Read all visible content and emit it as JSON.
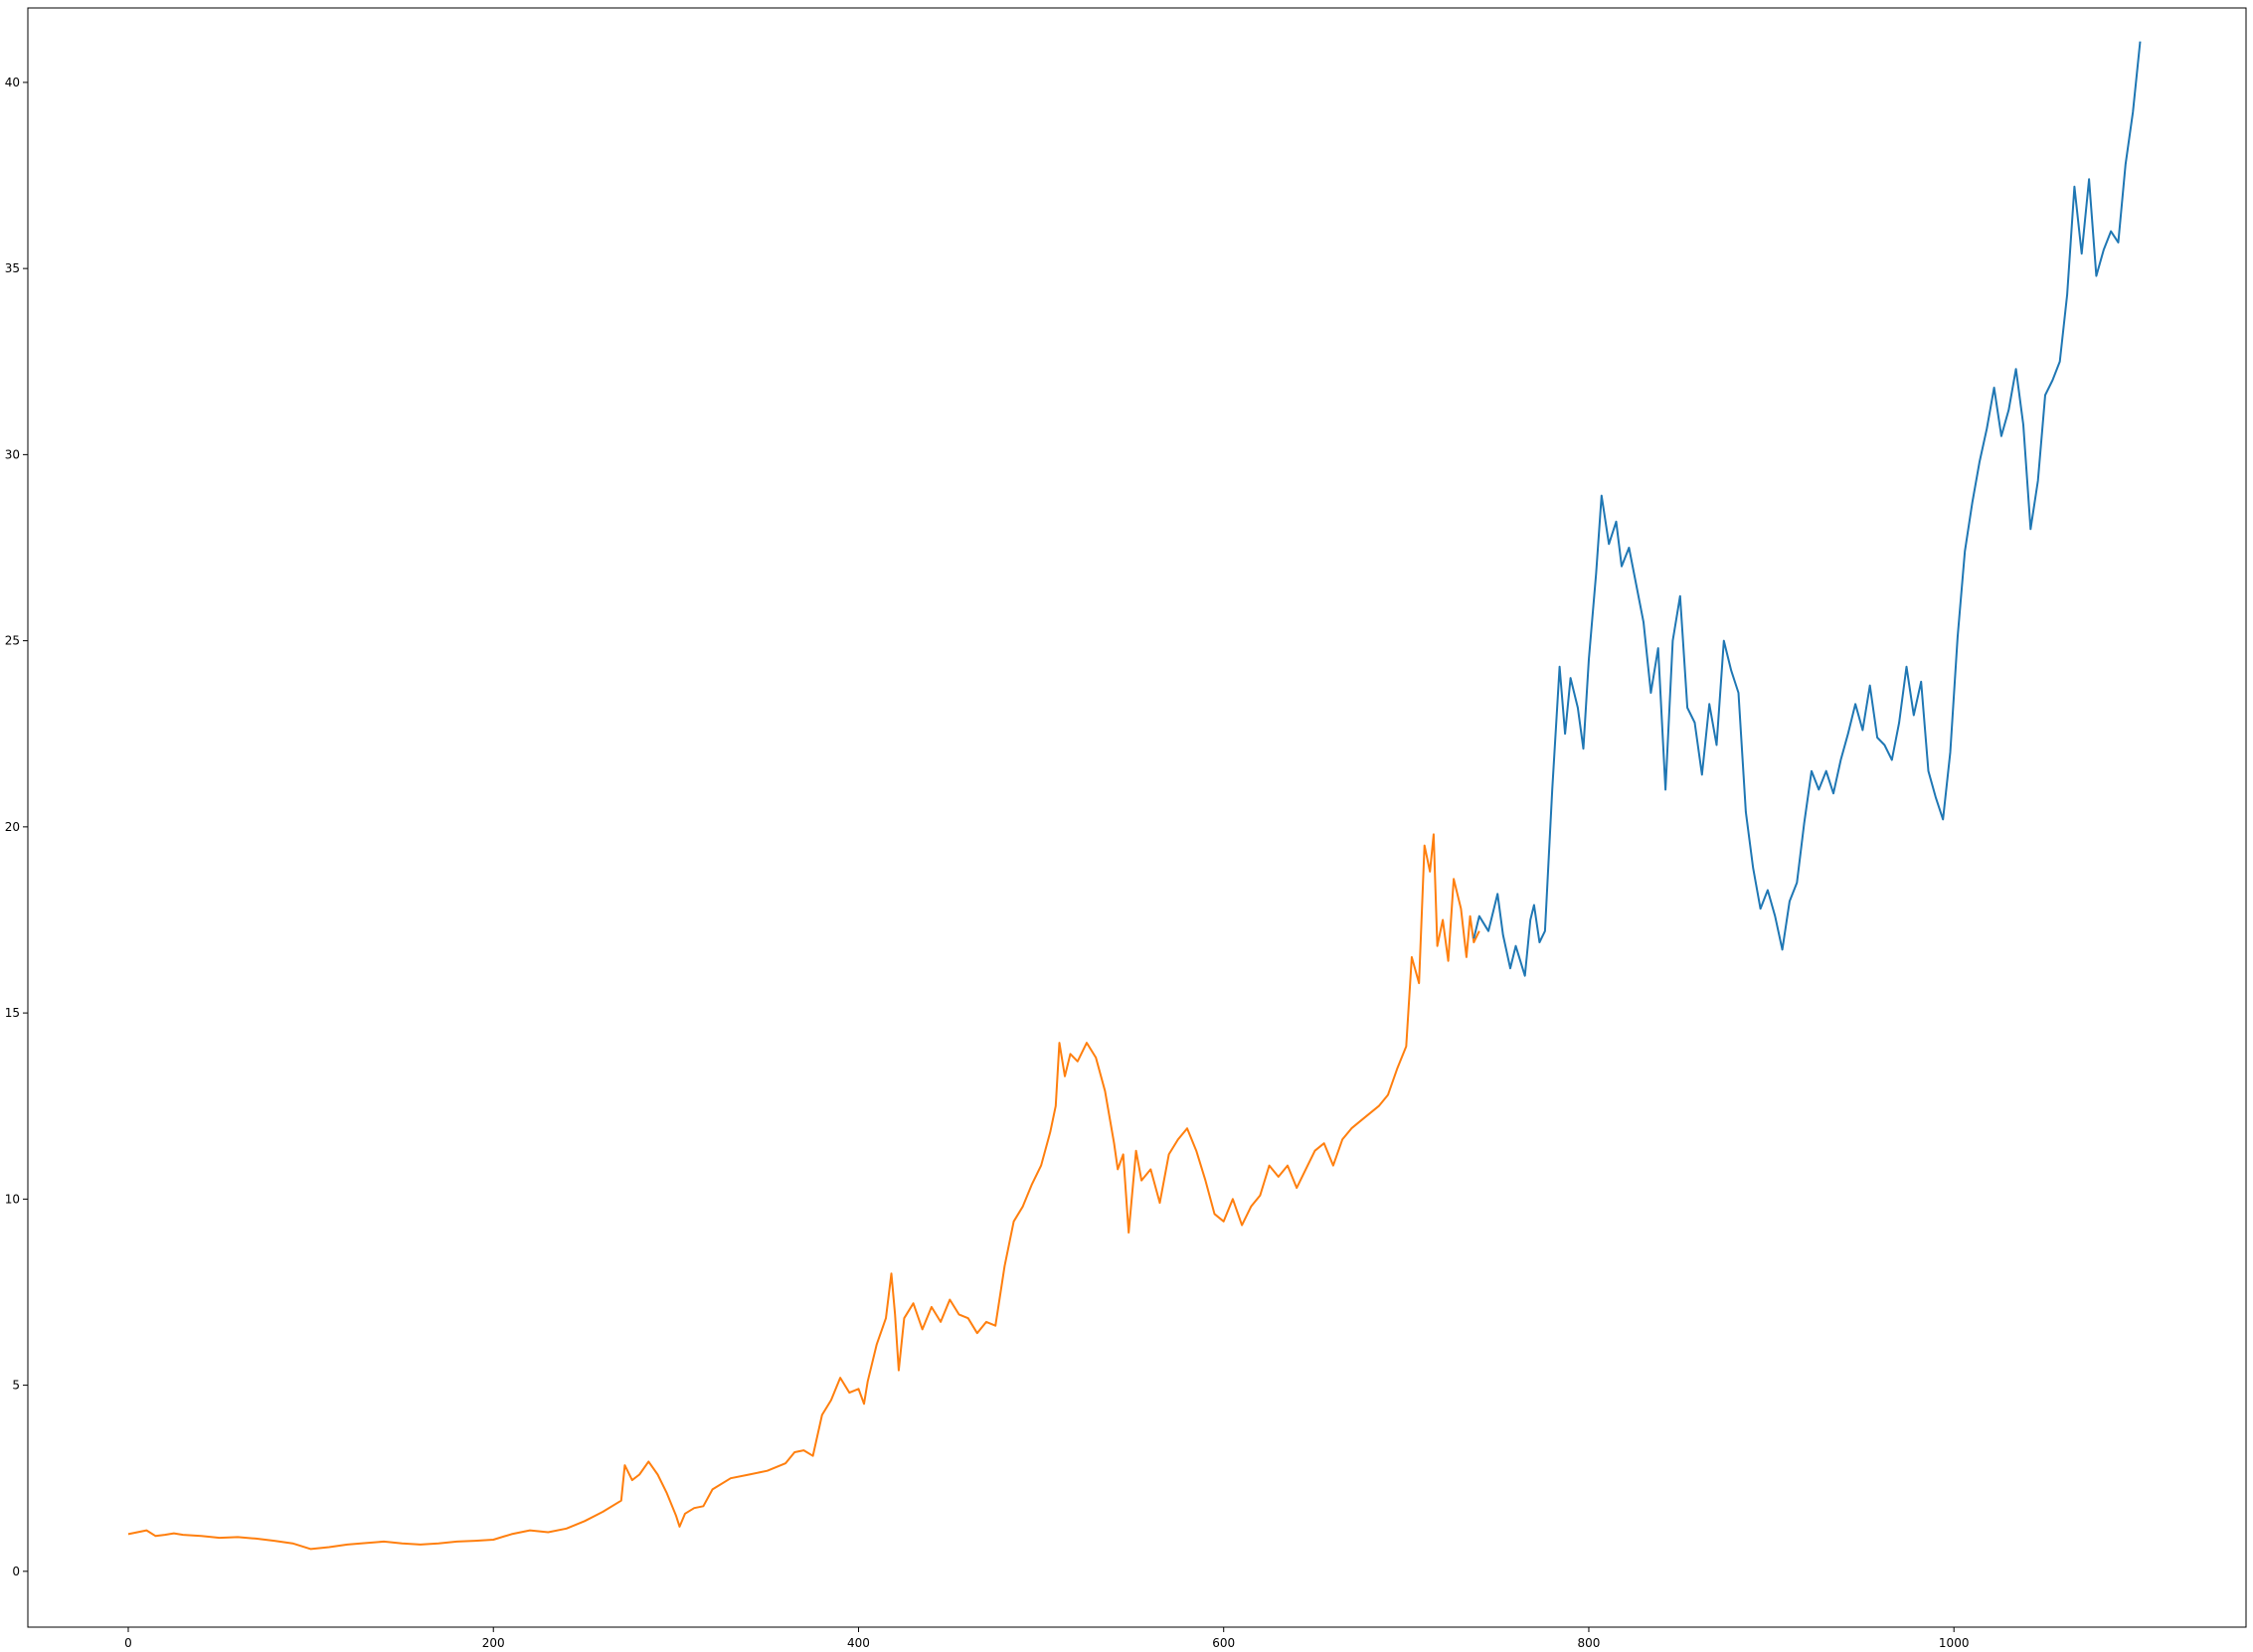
{
  "chart_data": {
    "type": "line",
    "title": "",
    "xlabel": "",
    "ylabel": "",
    "xlim": [
      -55,
      1160
    ],
    "ylim": [
      -1.5,
      42.0
    ],
    "grid": false,
    "legend": "none",
    "x_ticks": [
      {
        "value": 0,
        "label": "0"
      },
      {
        "value": 200,
        "label": "200"
      },
      {
        "value": 400,
        "label": "400"
      },
      {
        "value": 600,
        "label": "600"
      },
      {
        "value": 800,
        "label": "800"
      },
      {
        "value": 1000,
        "label": "1000"
      }
    ],
    "y_ticks": [
      {
        "value": 0,
        "label": "0"
      },
      {
        "value": 5,
        "label": "5"
      },
      {
        "value": 10,
        "label": "10"
      },
      {
        "value": 15,
        "label": "15"
      },
      {
        "value": 20,
        "label": "20"
      },
      {
        "value": 25,
        "label": "25"
      },
      {
        "value": 30,
        "label": "30"
      },
      {
        "value": 35,
        "label": "35"
      },
      {
        "value": 40,
        "label": "40"
      }
    ],
    "series": [
      {
        "color": "#ff7f0e",
        "x": [
          0,
          5,
          10,
          15,
          20,
          25,
          30,
          40,
          50,
          60,
          70,
          80,
          90,
          100,
          110,
          120,
          130,
          140,
          150,
          160,
          170,
          180,
          190,
          200,
          210,
          220,
          230,
          240,
          250,
          260,
          270,
          272,
          276,
          280,
          285,
          290,
          295,
          300,
          302,
          305,
          310,
          315,
          320,
          330,
          340,
          350,
          360,
          365,
          370,
          375,
          380,
          385,
          390,
          395,
          400,
          403,
          405,
          410,
          415,
          418,
          420,
          422,
          425,
          430,
          435,
          440,
          445,
          450,
          455,
          460,
          465,
          470,
          475,
          480,
          485,
          490,
          495,
          500,
          505,
          508,
          510,
          513,
          516,
          520,
          525,
          530,
          535,
          540,
          542,
          545,
          548,
          552,
          555,
          560,
          565,
          570,
          575,
          580,
          585,
          590,
          595,
          600,
          605,
          610,
          615,
          620,
          625,
          630,
          635,
          640,
          645,
          650,
          655,
          660,
          665,
          670,
          675,
          680,
          685,
          690,
          695,
          700,
          703,
          707,
          710,
          713,
          715,
          717,
          720,
          723,
          726,
          730,
          733,
          735,
          737,
          740
        ],
        "y": [
          1.0,
          1.05,
          1.1,
          0.95,
          0.98,
          1.02,
          0.98,
          0.95,
          0.9,
          0.92,
          0.88,
          0.82,
          0.75,
          0.6,
          0.65,
          0.72,
          0.76,
          0.8,
          0.75,
          0.72,
          0.75,
          0.8,
          0.82,
          0.85,
          1.0,
          1.1,
          1.05,
          1.15,
          1.35,
          1.6,
          1.9,
          2.85,
          2.45,
          2.6,
          2.95,
          2.6,
          2.1,
          1.5,
          1.2,
          1.55,
          1.7,
          1.75,
          2.2,
          2.5,
          2.6,
          2.7,
          2.9,
          3.2,
          3.25,
          3.1,
          4.2,
          4.6,
          5.2,
          4.8,
          4.9,
          4.5,
          5.1,
          6.1,
          6.8,
          8.0,
          6.9,
          5.4,
          6.8,
          7.2,
          6.5,
          7.1,
          6.7,
          7.3,
          6.9,
          6.8,
          6.4,
          6.7,
          6.6,
          8.2,
          9.4,
          9.8,
          10.4,
          10.9,
          11.8,
          12.5,
          14.2,
          13.3,
          13.9,
          13.7,
          14.2,
          13.8,
          12.9,
          11.5,
          10.8,
          11.2,
          9.1,
          11.3,
          10.5,
          10.8,
          9.9,
          11.2,
          11.6,
          11.9,
          11.3,
          10.5,
          9.6,
          9.4,
          10.0,
          9.3,
          9.8,
          10.1,
          10.9,
          10.6,
          10.9,
          10.3,
          10.8,
          11.3,
          11.5,
          10.9,
          11.6,
          11.9,
          12.1,
          12.3,
          12.5,
          12.8,
          13.5,
          14.1,
          16.5,
          15.8,
          19.5,
          18.8,
          19.8,
          16.8,
          17.5,
          16.4,
          18.6,
          17.8,
          16.5,
          17.6,
          16.9,
          17.2
        ]
      },
      {
        "color": "#1f77b4",
        "x": [
          737,
          740,
          745,
          750,
          753,
          757,
          760,
          765,
          768,
          770,
          773,
          776,
          780,
          784,
          787,
          790,
          794,
          797,
          800,
          804,
          807,
          811,
          815,
          818,
          822,
          826,
          830,
          834,
          838,
          842,
          846,
          850,
          854,
          858,
          862,
          866,
          870,
          874,
          878,
          882,
          886,
          890,
          894,
          898,
          902,
          906,
          910,
          914,
          918,
          922,
          926,
          930,
          934,
          938,
          942,
          946,
          950,
          954,
          958,
          962,
          966,
          970,
          974,
          978,
          982,
          986,
          990,
          994,
          998,
          1002,
          1006,
          1010,
          1014,
          1018,
          1022,
          1026,
          1030,
          1034,
          1038,
          1042,
          1046,
          1050,
          1054,
          1058,
          1062,
          1066,
          1070,
          1074,
          1078,
          1082,
          1086,
          1090,
          1094,
          1098,
          1102
        ],
        "y": [
          17.0,
          17.6,
          17.2,
          18.2,
          17.1,
          16.2,
          16.8,
          16.0,
          17.5,
          17.9,
          16.9,
          17.2,
          21.0,
          24.3,
          22.5,
          24.0,
          23.2,
          22.1,
          24.5,
          26.8,
          28.9,
          27.6,
          28.2,
          27.0,
          27.5,
          26.5,
          25.5,
          23.6,
          24.8,
          21.0,
          25.0,
          26.2,
          23.2,
          22.8,
          21.4,
          23.3,
          22.2,
          25.0,
          24.2,
          23.6,
          20.4,
          18.9,
          17.8,
          18.3,
          17.6,
          16.7,
          18.0,
          18.5,
          20.1,
          21.5,
          21.0,
          21.5,
          20.9,
          21.8,
          22.5,
          23.3,
          22.6,
          23.8,
          22.4,
          22.2,
          21.8,
          22.8,
          24.3,
          23.0,
          23.9,
          21.5,
          20.8,
          20.2,
          22.0,
          25.1,
          27.4,
          28.7,
          29.8,
          30.7,
          31.8,
          30.5,
          31.2,
          32.3,
          30.8,
          28.0,
          29.3,
          31.6,
          32.0,
          32.5,
          34.3,
          37.2,
          35.4,
          37.4,
          34.8,
          35.5,
          36.0,
          35.7,
          37.8,
          39.2,
          41.1
        ]
      }
    ]
  }
}
